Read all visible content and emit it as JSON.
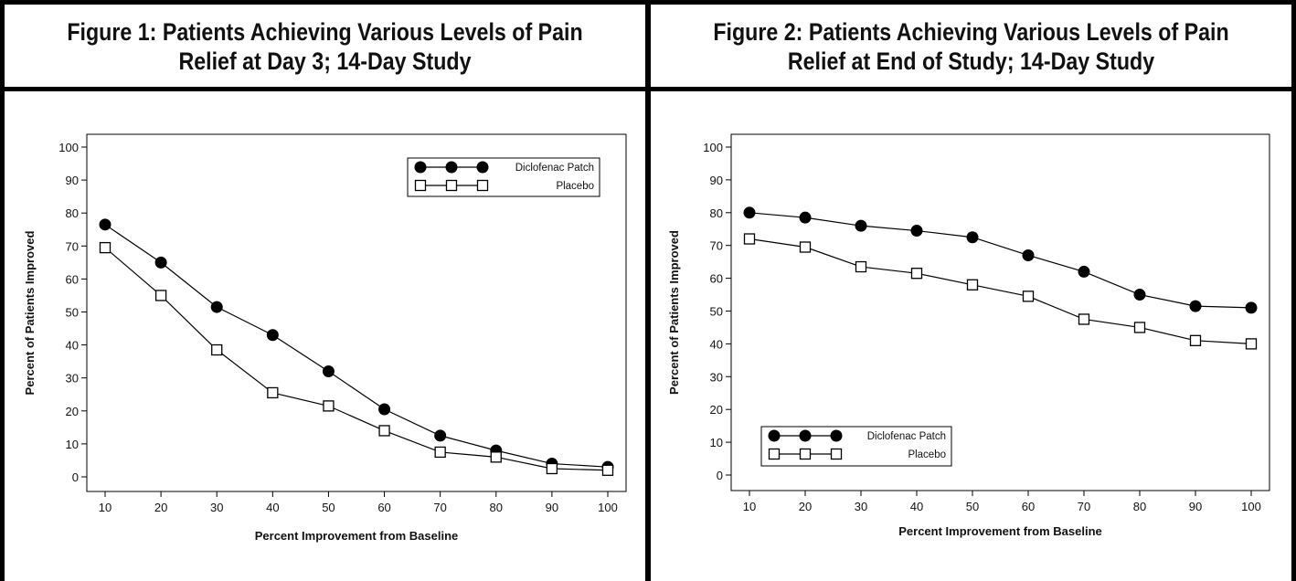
{
  "figures": [
    {
      "title_line1": "Figure 1: Patients Achieving Various Levels of Pain",
      "title_line2": "Relief at Day 3; 14-Day Study"
    },
    {
      "title_line1": "Figure 2: Patients Achieving Various Levels of Pain",
      "title_line2": "Relief at End of Study; 14-Day Study"
    }
  ],
  "chart_data": [
    {
      "type": "line",
      "title": "Figure 1: Patients Achieving Various Levels of Pain Relief at Day 3; 14-Day Study",
      "xlabel": "Percent Improvement from Baseline",
      "ylabel": "Percent of Patients Improved",
      "x": [
        10,
        20,
        30,
        40,
        50,
        60,
        70,
        80,
        90,
        100
      ],
      "xlim": [
        10,
        100
      ],
      "ylim": [
        0,
        100
      ],
      "yticks": [
        0,
        10,
        20,
        30,
        40,
        50,
        60,
        70,
        80,
        90,
        100
      ],
      "legend_position": "top-right",
      "series": [
        {
          "name": "Diclofenac Patch",
          "marker": "filled-circle",
          "values": [
            76.5,
            65,
            51.5,
            43,
            32,
            20.5,
            12.5,
            8,
            4,
            3
          ]
        },
        {
          "name": "Placebo",
          "marker": "open-square",
          "values": [
            69.5,
            55,
            38.5,
            25.5,
            21.5,
            14,
            7.5,
            6,
            2.5,
            2
          ]
        }
      ]
    },
    {
      "type": "line",
      "title": "Figure 2: Patients Achieving Various Levels of Pain Relief at End of Study; 14-Day Study",
      "xlabel": "Percent Improvement from Baseline",
      "ylabel": "Percent of Patients Improved",
      "x": [
        10,
        20,
        30,
        40,
        50,
        60,
        70,
        80,
        90,
        100
      ],
      "xlim": [
        10,
        100
      ],
      "ylim": [
        0,
        100
      ],
      "yticks": [
        0,
        10,
        20,
        30,
        40,
        50,
        60,
        70,
        80,
        90,
        100
      ],
      "legend_position": "bottom-left",
      "series": [
        {
          "name": "Diclofenac Patch",
          "marker": "filled-circle",
          "values": [
            80,
            78.5,
            76,
            74.5,
            72.5,
            67,
            62,
            55,
            51.5,
            51
          ]
        },
        {
          "name": "Placebo",
          "marker": "open-square",
          "values": [
            72,
            69.5,
            63.5,
            61.5,
            58,
            54.5,
            47.5,
            45,
            41,
            40
          ]
        }
      ]
    }
  ]
}
